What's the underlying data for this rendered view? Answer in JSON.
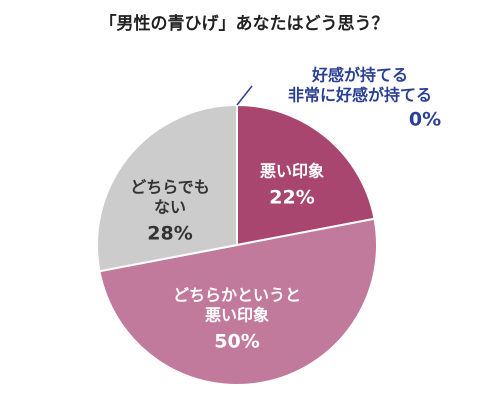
{
  "chart_data": {
    "type": "pie",
    "title": "「男性の青ひげ」あなたはどう思う？",
    "categories": [
      [
        "好感が持てる",
        "非常に好感が持てる"
      ],
      [
        "悪い印象"
      ],
      [
        "どちらかというと",
        "悪い印象"
      ],
      [
        "どちらでも",
        "ない"
      ]
    ],
    "values": [
      0,
      22,
      50,
      28
    ],
    "value_labels": [
      "0%",
      "22%",
      "50%",
      "28%"
    ],
    "colors": [
      "#2b3f94",
      "#a8466f",
      "#c27a9c",
      "#cccccc"
    ]
  }
}
